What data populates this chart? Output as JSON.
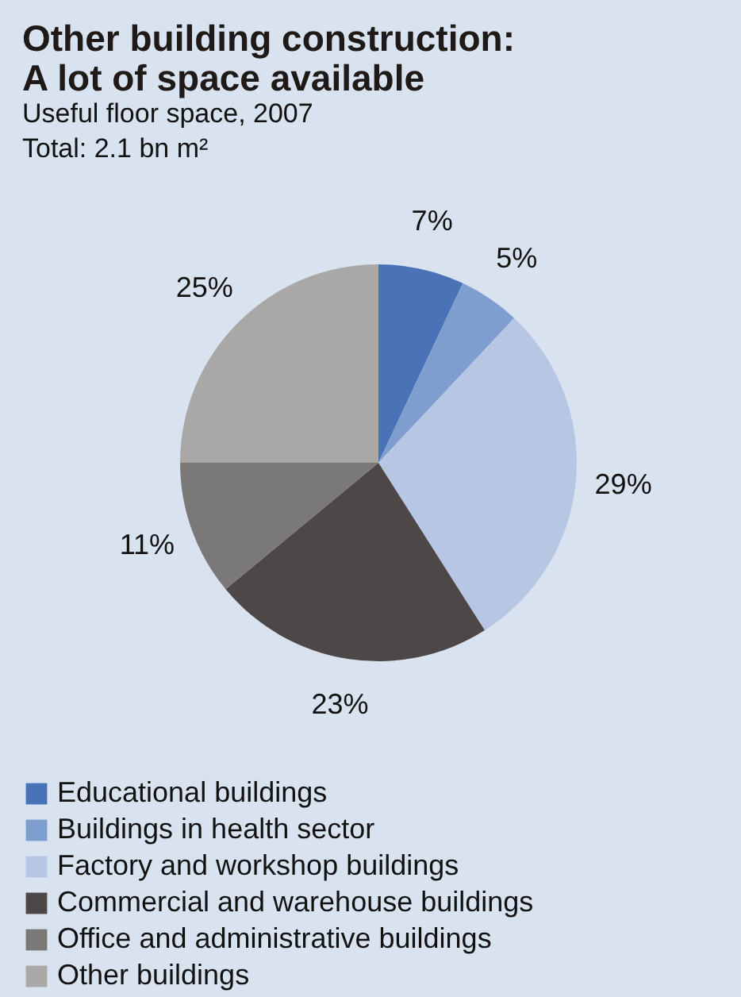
{
  "chart_data": {
    "type": "pie",
    "title": "Other building construction: A lot of space available",
    "subtitle": "Useful floor space, 2007",
    "annotations": [
      "Total: 2.1 bn m²"
    ],
    "categories": [
      "Educational buildings",
      "Buildings in health sector",
      "Factory and workshop buildings",
      "Commercial and warehouse buildings",
      "Office and administrative buildings",
      "Other buildings"
    ],
    "values": [
      7,
      5,
      29,
      23,
      11,
      25
    ],
    "value_labels": [
      "7%",
      "5%",
      "29%",
      "23%",
      "11%",
      "25%"
    ],
    "colors": [
      "#4a72b6",
      "#7f9ed0",
      "#b7c7e3",
      "#4d4847",
      "#7b7977",
      "#a9a8a6"
    ],
    "legend": "bottom"
  }
}
